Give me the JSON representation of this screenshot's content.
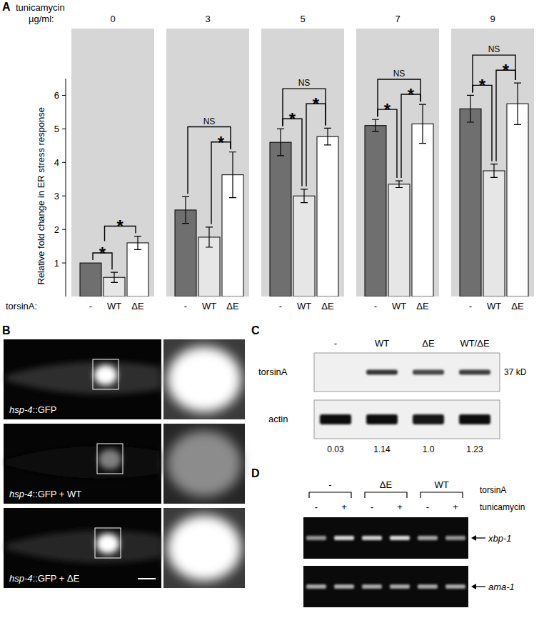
{
  "panel_labels": [
    "A",
    "B",
    "C",
    "D"
  ],
  "chart_data": {
    "type": "bar",
    "title": "tunicamycin",
    "subtitle": "µg/ml:",
    "x_label": "torsinA:",
    "y_label": "Relative fold change in ER stress response",
    "categories": [
      "0",
      "3",
      "5",
      "7",
      "9"
    ],
    "series": [
      {
        "name": "-",
        "color": "#6f6f6f",
        "values": [
          1.0,
          2.58,
          4.6,
          5.1,
          5.6
        ],
        "errors": [
          null,
          0.4,
          0.4,
          0.18,
          0.4
        ]
      },
      {
        "name": "WT",
        "color": "#e6e6e6",
        "values": [
          0.57,
          1.77,
          3.0,
          3.35,
          3.75
        ],
        "errors": [
          0.15,
          0.3,
          0.2,
          0.1,
          0.2
        ]
      },
      {
        "name": "ΔE",
        "color": "#ffffff",
        "values": [
          1.6,
          3.63,
          4.77,
          5.15,
          5.75
        ],
        "errors": [
          0.2,
          0.68,
          0.25,
          0.58,
          0.62
        ]
      }
    ],
    "ylim": [
      0,
      6.5
    ],
    "yticks": [
      1,
      2,
      3,
      4,
      5,
      6
    ],
    "annotations": [
      {
        "category": 0,
        "from": [
          0
        ],
        "to": [
          1
        ],
        "label": "*"
      },
      {
        "category": 0,
        "from": [
          0,
          1
        ],
        "to": [
          2
        ],
        "label": "*"
      },
      {
        "category": 1,
        "from": [
          1
        ],
        "to": [
          2
        ],
        "label": "*"
      },
      {
        "category": 1,
        "from": [
          0
        ],
        "to": [
          2
        ],
        "label": "NS"
      },
      {
        "category": 2,
        "from": [
          0
        ],
        "to": [
          1
        ],
        "label": "*"
      },
      {
        "category": 2,
        "from": [
          1
        ],
        "to": [
          2
        ],
        "label": "*"
      },
      {
        "category": 2,
        "from": [
          0
        ],
        "to": [
          2
        ],
        "label": "NS"
      },
      {
        "category": 3,
        "from": [
          0
        ],
        "to": [
          1
        ],
        "label": "*"
      },
      {
        "category": 3,
        "from": [
          1
        ],
        "to": [
          2
        ],
        "label": "*"
      },
      {
        "category": 3,
        "from": [
          0
        ],
        "to": [
          2
        ],
        "label": "NS"
      },
      {
        "category": 4,
        "from": [
          0
        ],
        "to": [
          1
        ],
        "label": "*"
      },
      {
        "category": 4,
        "from": [
          1
        ],
        "to": [
          2
        ],
        "label": "*"
      },
      {
        "category": 4,
        "from": [
          0
        ],
        "to": [
          2
        ],
        "label": "NS"
      }
    ]
  },
  "panel_b": {
    "rows": [
      {
        "italic": "hsp-4",
        "text": "::GFP"
      },
      {
        "italic": "hsp-4",
        "text": "::GFP + WT"
      },
      {
        "italic": "hsp-4",
        "text": "::GFP + ΔE"
      }
    ]
  },
  "panel_c": {
    "lanes": [
      "-",
      "WT",
      "ΔE",
      "WT/ΔE"
    ],
    "blots": [
      {
        "name": "torsinA",
        "size": "37 kD"
      },
      {
        "name": "actin"
      }
    ],
    "ratios": [
      "0.03",
      "1.14",
      "1.0",
      "1.23"
    ]
  },
  "panel_d": {
    "groups": [
      "-",
      "ΔE",
      "WT"
    ],
    "group_title": "torsinA",
    "treatment": "tunicamycin",
    "levels": [
      "-",
      "+"
    ],
    "bands": [
      "xbp-1",
      "ama-1"
    ]
  }
}
